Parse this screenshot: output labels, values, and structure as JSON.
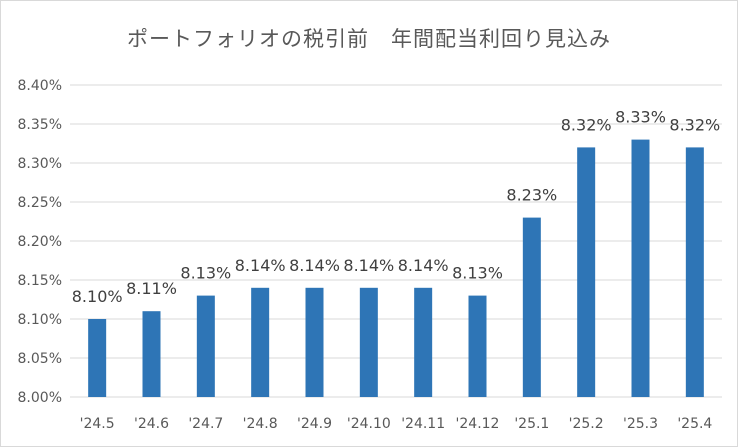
{
  "chart_data": {
    "type": "bar",
    "title": "ポートフォリオの税引前　年間配当利回り見込み",
    "xlabel": "",
    "ylabel": "",
    "categories": [
      "'24.5",
      "'24.6",
      "'24.7",
      "'24.8",
      "'24.9",
      "'24.10",
      "'24.11",
      "'24.12",
      "'25.1",
      "'25.2",
      "'25.3",
      "'25.4"
    ],
    "values": [
      8.1,
      8.11,
      8.13,
      8.14,
      8.14,
      8.14,
      8.14,
      8.13,
      8.23,
      8.32,
      8.33,
      8.32
    ],
    "data_labels": [
      "8.10%",
      "8.11%",
      "8.13%",
      "8.14%",
      "8.14%",
      "8.14%",
      "8.14%",
      "8.13%",
      "8.23%",
      "8.32%",
      "8.33%",
      "8.32%"
    ],
    "ylim": [
      8.0,
      8.4
    ],
    "yticks": [
      8.0,
      8.05,
      8.1,
      8.15,
      8.2,
      8.25,
      8.3,
      8.35,
      8.4
    ],
    "ytick_labels": [
      "8.00%",
      "8.05%",
      "8.10%",
      "8.15%",
      "8.20%",
      "8.25%",
      "8.30%",
      "8.35%",
      "8.40%"
    ],
    "grid": true,
    "legend": "none",
    "colors": {
      "bar": "#2e75b6",
      "grid": "#d9d9d9",
      "text": "#595959"
    }
  }
}
